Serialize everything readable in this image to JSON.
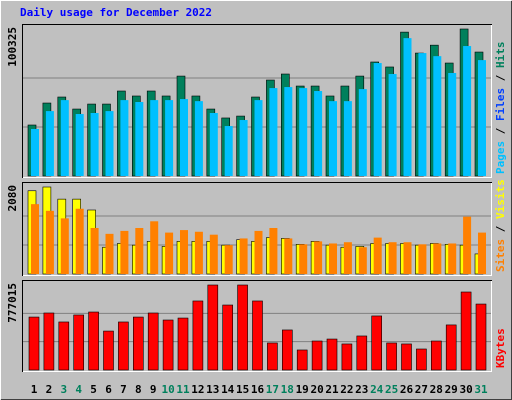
{
  "chart_data": [
    {
      "type": "bar",
      "title": "Daily usage for December 2022",
      "legend_separator": " / ",
      "ylim": [
        0,
        100325
      ],
      "yticks": [
        100325
      ],
      "series": [
        {
          "name": "Pages",
          "color": "#00C0FF",
          "values": [
            32100,
            44300,
            51800,
            42300,
            43000,
            44300,
            51800,
            50500,
            51800,
            51800,
            52500,
            51100,
            43000,
            34100,
            38200,
            51800,
            60000,
            60700,
            60000,
            58000,
            51100,
            51100,
            59300,
            77100,
            69600,
            94100,
            83900,
            81800,
            70300,
            88700,
            79100
          ]
        },
        {
          "name": "Files",
          "color": "#0040FF",
          "values": [
            21100,
            34100,
            37500,
            33400,
            31400,
            32700,
            37500,
            35500,
            37500,
            35500,
            45000,
            35500,
            30700,
            24600,
            27300,
            35500,
            43700,
            46400,
            40200,
            39600,
            34800,
            34100,
            40900,
            53200,
            51100,
            70900,
            57300,
            62800,
            49800,
            68900,
            58700
          ]
        },
        {
          "name": "Hits",
          "color": "#00805C",
          "values": [
            34800,
            49800,
            53900,
            45700,
            49100,
            49100,
            58000,
            54600,
            58000,
            54600,
            68200,
            54600,
            45700,
            39600,
            40900,
            53900,
            65500,
            69600,
            61400,
            61400,
            54600,
            61400,
            68200,
            77800,
            74400,
            98200,
            83900,
            89300,
            77100,
            100325,
            84600
          ]
        }
      ]
    },
    {
      "type": "bar",
      "legend_separator": " / ",
      "ylim": [
        0,
        2080
      ],
      "yticks": [
        2080
      ],
      "series": [
        {
          "name": "Sites",
          "color": "#FF8000",
          "values": [
            1670,
            1510,
            1330,
            1560,
            1100,
            960,
            1030,
            1100,
            1260,
            990,
            1050,
            1010,
            940,
            690,
            850,
            1030,
            1100,
            850,
            710,
            780,
            730,
            760,
            640,
            870,
            760,
            760,
            710,
            730,
            730,
            1370,
            990
          ]
        },
        {
          "name": "Visits",
          "color": "#FFFF00",
          "values": [
            1990,
            2080,
            1790,
            1790,
            1530,
            640,
            730,
            690,
            780,
            660,
            780,
            780,
            780,
            690,
            820,
            780,
            870,
            850,
            710,
            780,
            690,
            640,
            660,
            730,
            730,
            730,
            690,
            730,
            710,
            690,
            480
          ]
        }
      ]
    },
    {
      "type": "bar",
      "ylim": [
        0,
        777015
      ],
      "yticks": [
        777015
      ],
      "categories": [
        "1",
        "2",
        "3",
        "4",
        "5",
        "6",
        "7",
        "8",
        "9",
        "10",
        "11",
        "12",
        "13",
        "14",
        "15",
        "16",
        "17",
        "18",
        "19",
        "20",
        "21",
        "22",
        "23",
        "24",
        "25",
        "26",
        "27",
        "28",
        "29",
        "30",
        "31"
      ],
      "category_colors": [
        "#000000",
        "#000000",
        "#00805C",
        "#00805C",
        "#000000",
        "#000000",
        "#000000",
        "#000000",
        "#000000",
        "#00805C",
        "#00805C",
        "#000000",
        "#000000",
        "#000000",
        "#000000",
        "#000000",
        "#00805C",
        "#00805C",
        "#000000",
        "#000000",
        "#000000",
        "#000000",
        "#000000",
        "#00805C",
        "#00805C",
        "#000000",
        "#000000",
        "#000000",
        "#000000",
        "#000000",
        "#00805C"
      ],
      "series": [
        {
          "name": "KBytes",
          "color": "#FF0000",
          "values": [
            484000,
            521000,
            439000,
            503000,
            530000,
            356000,
            439000,
            484000,
            521000,
            457000,
            475000,
            631000,
            777015,
            594000,
            777015,
            631000,
            247000,
            366000,
            183000,
            265000,
            283000,
            238000,
            311000,
            494000,
            247000,
            238000,
            192000,
            265000,
            412000,
            713000,
            603000
          ]
        }
      ]
    }
  ]
}
